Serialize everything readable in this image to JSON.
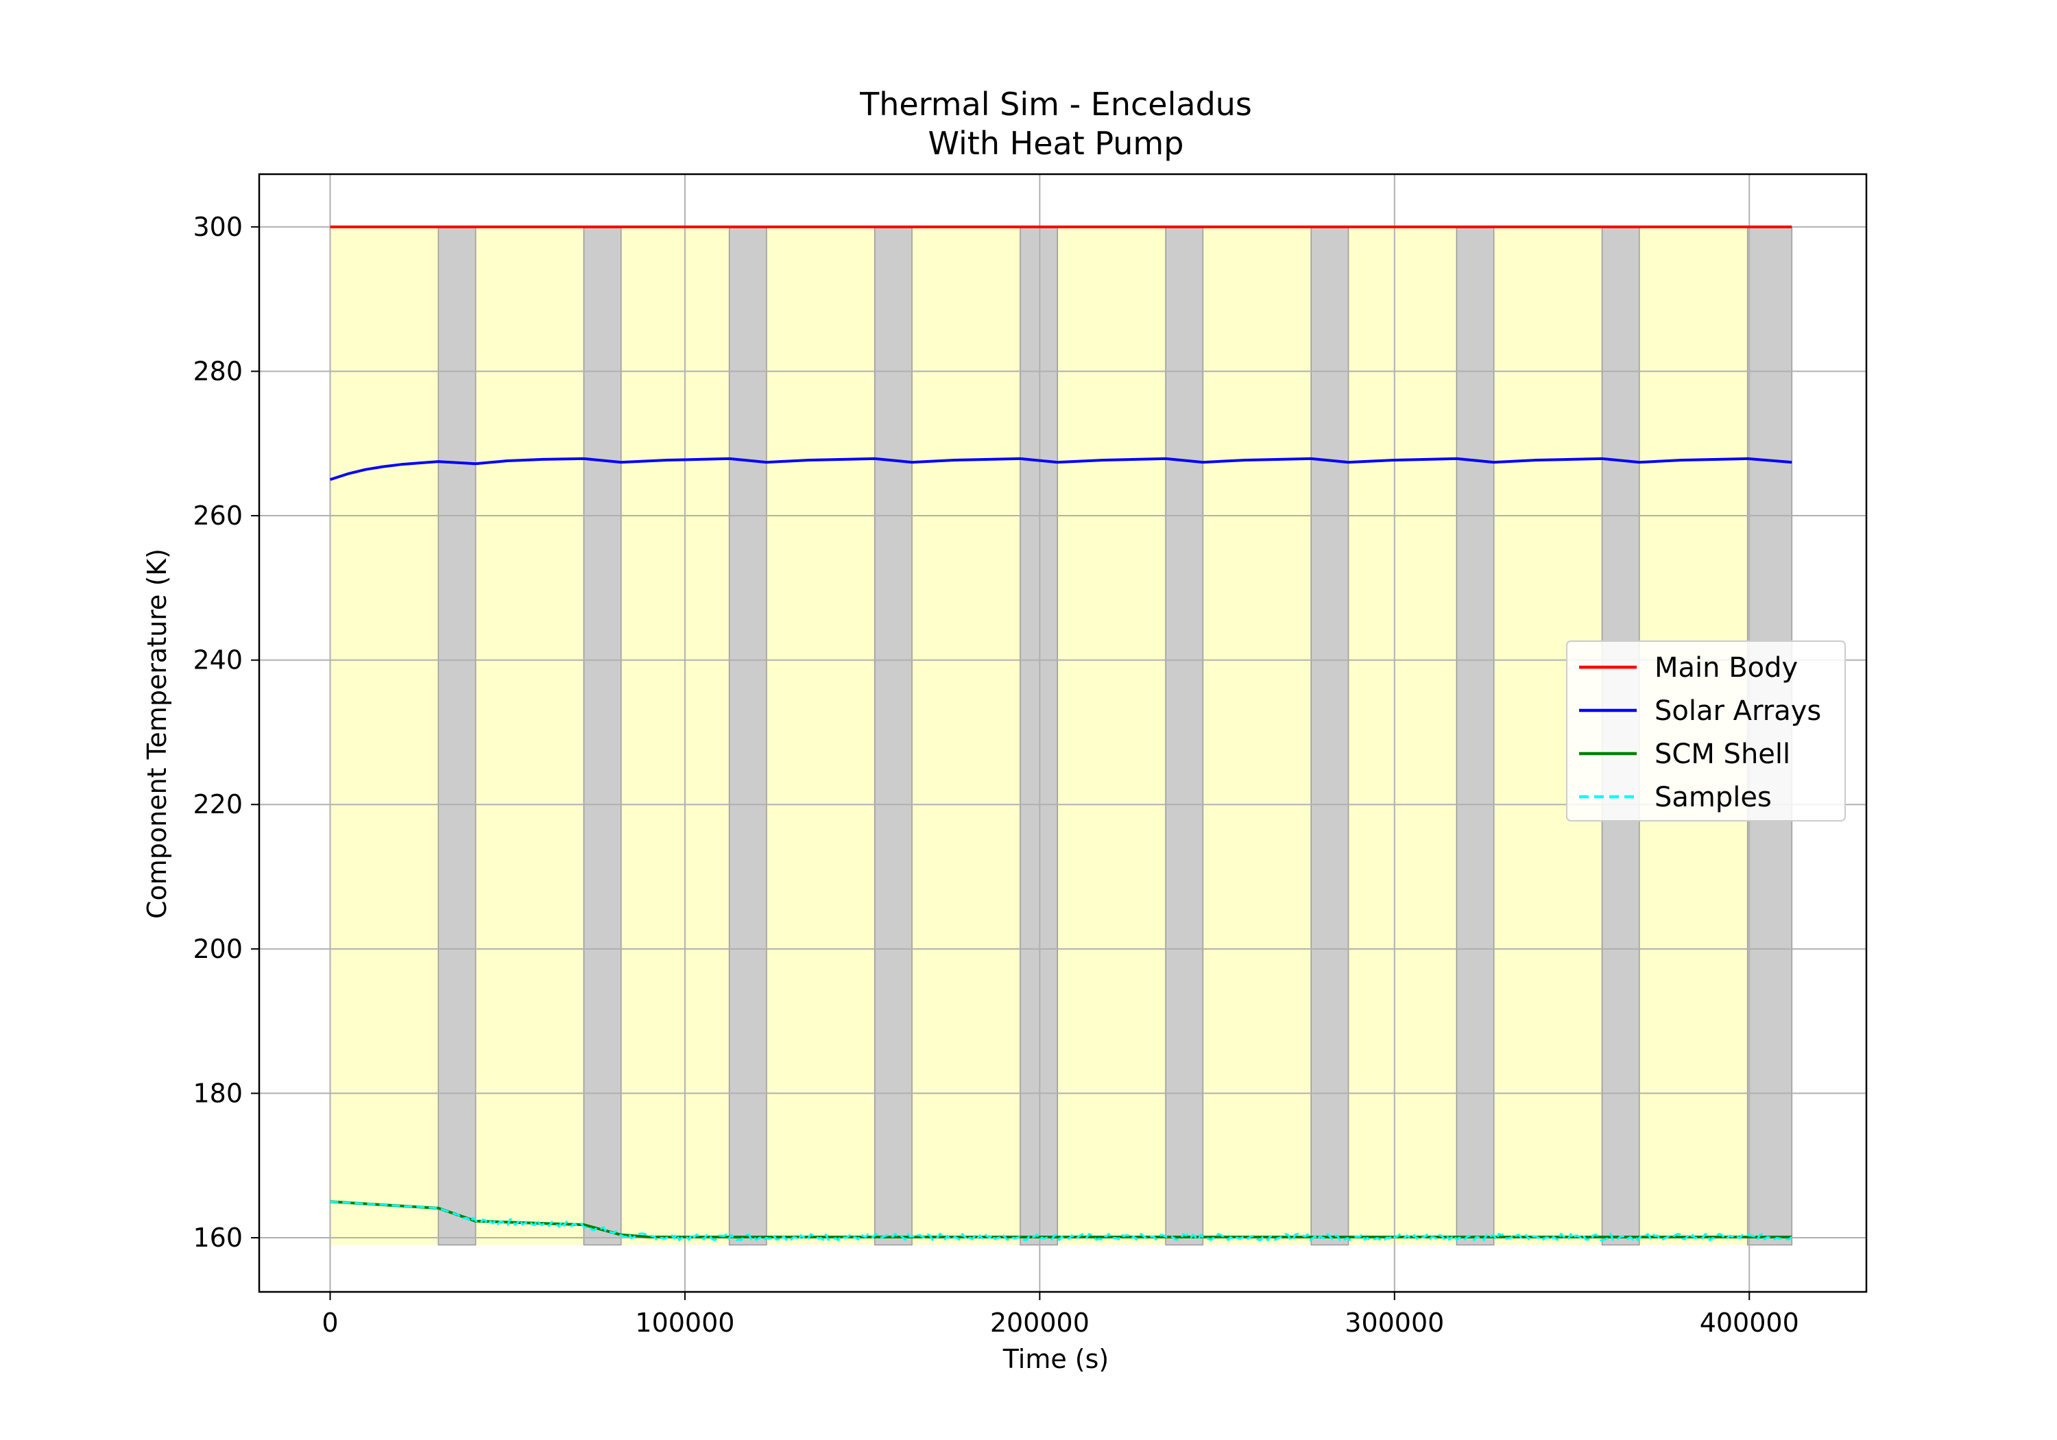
{
  "chart_data": {
    "type": "line",
    "title": "Thermal Sim - Enceladus",
    "subtitle": "With Heat Pump",
    "xlabel": "Time (s)",
    "ylabel": "Component Temperature (K)",
    "xlim": [
      -20000,
      433000
    ],
    "ylim": [
      152.5,
      307.3
    ],
    "x_ticks": [
      0,
      100000,
      200000,
      300000,
      400000
    ],
    "x_tick_labels": [
      "0",
      "100000",
      "200000",
      "300000",
      "400000"
    ],
    "y_ticks": [
      160,
      180,
      200,
      220,
      240,
      260,
      280,
      300
    ],
    "y_tick_labels": [
      "160",
      "180",
      "200",
      "220",
      "240",
      "260",
      "280",
      "300"
    ],
    "grid": true,
    "legend_position": "center-right",
    "background_bands": {
      "y_range": [
        159,
        300
      ],
      "sunlit_color": "#ffffcc",
      "eclipse_color": "#cccccc",
      "sunlit": [
        [
          0,
          30500
        ],
        [
          41000,
          71500
        ],
        [
          82000,
          112500
        ],
        [
          123000,
          153500
        ],
        [
          164000,
          194500
        ],
        [
          205000,
          235500
        ],
        [
          246000,
          276500
        ],
        [
          287000,
          317500
        ],
        [
          328000,
          358500
        ],
        [
          369000,
          399500
        ]
      ],
      "eclipse": [
        [
          30500,
          41000
        ],
        [
          71500,
          82000
        ],
        [
          112500,
          123000
        ],
        [
          153500,
          164000
        ],
        [
          194500,
          205000
        ],
        [
          235500,
          246000
        ],
        [
          276500,
          287000
        ],
        [
          317500,
          328000
        ],
        [
          358500,
          369000
        ],
        [
          399500,
          412000
        ]
      ]
    },
    "series": [
      {
        "name": "Main Body",
        "color": "#ff0000",
        "dash": "solid",
        "x": [
          0,
          412000
        ],
        "y": [
          300,
          300
        ]
      },
      {
        "name": "Solar Arrays",
        "color": "#0000ff",
        "dash": "solid",
        "x": [
          0,
          5000,
          10000,
          15000,
          20000,
          25000,
          30500,
          41000,
          50000,
          60000,
          71500,
          82000,
          95000,
          112500,
          123000,
          135000,
          153500,
          164000,
          176000,
          194500,
          205000,
          218000,
          235500,
          246000,
          258000,
          276500,
          287000,
          300000,
          317500,
          328000,
          340000,
          358500,
          369000,
          381000,
          399500,
          412000
        ],
        "y": [
          265,
          265.8,
          266.4,
          266.8,
          267.1,
          267.3,
          267.5,
          267.2,
          267.6,
          267.8,
          267.9,
          267.4,
          267.7,
          267.9,
          267.4,
          267.7,
          267.9,
          267.4,
          267.7,
          267.9,
          267.4,
          267.7,
          267.9,
          267.4,
          267.7,
          267.9,
          267.4,
          267.7,
          267.9,
          267.4,
          267.7,
          267.9,
          267.4,
          267.7,
          267.9,
          267.4
        ]
      },
      {
        "name": "SCM Shell",
        "color": "#008000",
        "dash": "solid",
        "x": [
          0,
          30500,
          41000,
          71500,
          82000,
          90000,
          412000
        ],
        "y": [
          165,
          164.1,
          162.3,
          161.8,
          160.4,
          160.1,
          160.1
        ]
      },
      {
        "name": "Samples",
        "color": "#00ffff",
        "dash": "dashed",
        "x": [
          0,
          30500,
          41000,
          71500,
          82000,
          90000,
          412000
        ],
        "y": [
          165,
          164.1,
          162.3,
          161.8,
          160.4,
          160.1,
          160.1
        ],
        "noise_amplitude": 0.45
      }
    ]
  }
}
